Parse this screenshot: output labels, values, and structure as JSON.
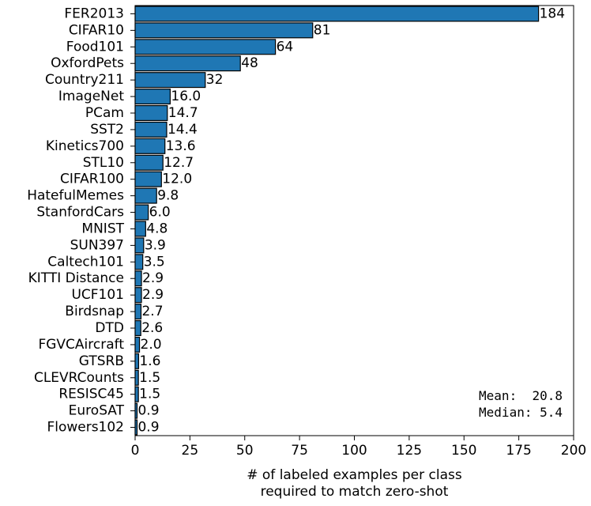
{
  "chart_data": {
    "type": "bar",
    "orientation": "horizontal",
    "categories": [
      "FER2013",
      "CIFAR10",
      "Food101",
      "OxfordPets",
      "Country211",
      "ImageNet",
      "PCam",
      "SST2",
      "Kinetics700",
      "STL10",
      "CIFAR100",
      "HatefulMemes",
      "StanfordCars",
      "MNIST",
      "SUN397",
      "Caltech101",
      "KITTI Distance",
      "UCF101",
      "Birdsnap",
      "DTD",
      "FGVCAircraft",
      "GTSRB",
      "CLEVRCounts",
      "RESISC45",
      "EuroSAT",
      "Flowers102"
    ],
    "values": [
      184,
      81,
      64,
      48,
      32,
      16.0,
      14.7,
      14.4,
      13.6,
      12.7,
      12.0,
      9.8,
      6.0,
      4.8,
      3.9,
      3.5,
      2.9,
      2.9,
      2.7,
      2.6,
      2.0,
      1.6,
      1.5,
      1.5,
      0.9,
      0.9
    ],
    "value_labels": [
      "184",
      "81",
      "64",
      "48",
      "32",
      "16.0",
      "14.7",
      "14.4",
      "13.6",
      "12.7",
      "12.0",
      "9.8",
      "6.0",
      "4.8",
      "3.9",
      "3.5",
      "2.9",
      "2.9",
      "2.7",
      "2.6",
      "2.0",
      "1.6",
      "1.5",
      "1.5",
      "0.9",
      "0.9"
    ],
    "xlabel_line1": "# of labeled examples per class",
    "xlabel_line2": "required to match zero-shot",
    "ylabel": "",
    "xlim": [
      0,
      200
    ],
    "xticks": [
      0,
      25,
      50,
      75,
      100,
      125,
      150,
      175,
      200
    ],
    "grid": false,
    "bar_color": "#1f77b4",
    "edge_color": "#000000",
    "annotations": [
      "Mean:  20.8",
      "Median: 5.4"
    ]
  }
}
